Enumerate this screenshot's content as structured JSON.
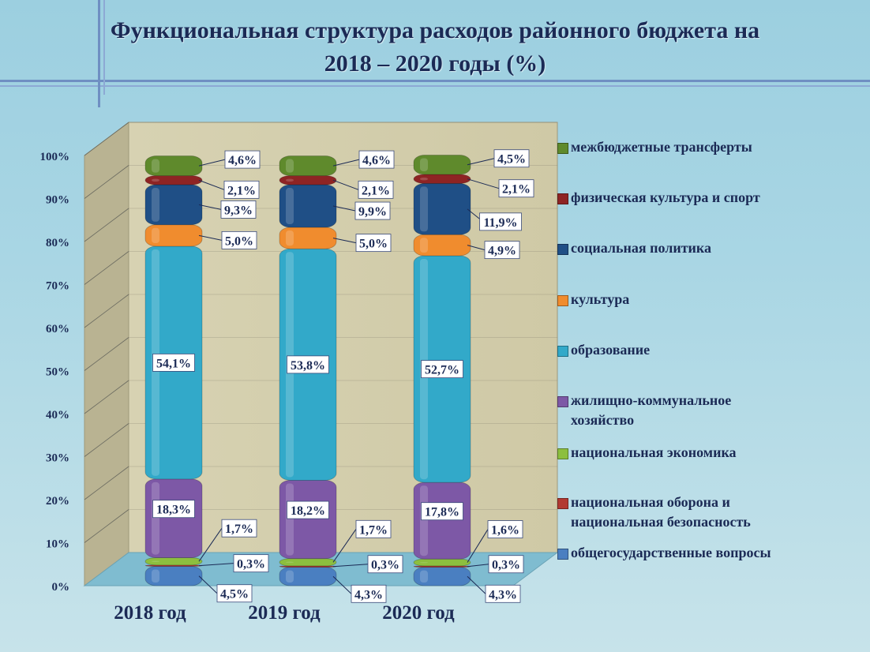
{
  "chart_data": {
    "type": "bar",
    "stacked": true,
    "title_line1": "Функциональная структура расходов районного бюджета на",
    "title_line2": "2018 – 2020 годы (%)",
    "categories": [
      "2018 год",
      "2019 год",
      "2020 год"
    ],
    "y_ticks": [
      "0%",
      "10%",
      "20%",
      "30%",
      "40%",
      "50%",
      "60%",
      "70%",
      "80%",
      "90%",
      "100%"
    ],
    "ylim": [
      0,
      100
    ],
    "series": [
      {
        "name": "общегосударственные вопросы",
        "color": "#4a7fc1",
        "values": [
          4.5,
          4.3,
          4.3
        ],
        "labels": [
          "4,5%",
          "4,3%",
          "4,3%"
        ]
      },
      {
        "name": "национальная оборона и национальная безопасность",
        "color": "#b23a32",
        "values": [
          0.3,
          0.3,
          0.3
        ],
        "labels": [
          "0,3%",
          "0,3%",
          "0,3%"
        ]
      },
      {
        "name": "национальная экономика",
        "color": "#8cbf3f",
        "values": [
          1.7,
          1.7,
          1.6
        ],
        "labels": [
          "1,7%",
          "1,7%",
          "1,6%"
        ]
      },
      {
        "name": "жилищно-коммунальное хозяйство",
        "color": "#7d58a6",
        "values": [
          18.3,
          18.2,
          17.8
        ],
        "labels": [
          "18,3%",
          "18,2%",
          "17,8%"
        ]
      },
      {
        "name": "образование",
        "color": "#32a9c9",
        "values": [
          54.1,
          53.8,
          52.7
        ],
        "labels": [
          "54,1%",
          "53,8%",
          "52,7%"
        ]
      },
      {
        "name": "культура",
        "color": "#f08c2e",
        "values": [
          5.0,
          5.0,
          4.9
        ],
        "labels": [
          "5,0%",
          "5,0%",
          "4,9%"
        ]
      },
      {
        "name": "социальная политика",
        "color": "#1f4f86",
        "values": [
          9.3,
          9.9,
          11.9
        ],
        "labels": [
          "9,3%",
          "9,9%",
          "11,9%"
        ]
      },
      {
        "name": "физическая культура и спорт",
        "color": "#8e2424",
        "values": [
          2.1,
          2.1,
          2.1
        ],
        "labels": [
          "2,1%",
          "2,1%",
          "2,1%"
        ]
      },
      {
        "name": "межбюджетные трансферты",
        "color": "#5f8a2c",
        "values": [
          4.6,
          4.6,
          4.5
        ],
        "labels": [
          "4,6%",
          "4,6%",
          "4,5%"
        ]
      }
    ],
    "legend_position": "right",
    "legend_lines": [
      [
        "межбюджетные трансферты"
      ],
      [
        "физическая культура и спорт"
      ],
      [
        "социальная политика"
      ],
      [
        "культура"
      ],
      [
        "образование"
      ],
      [
        "жилищно-коммунальное",
        "хозяйство"
      ],
      [
        "национальная экономика"
      ],
      [
        "национальная оборона и",
        "национальная безопасность"
      ],
      [
        "общегосударственные вопросы"
      ]
    ]
  }
}
